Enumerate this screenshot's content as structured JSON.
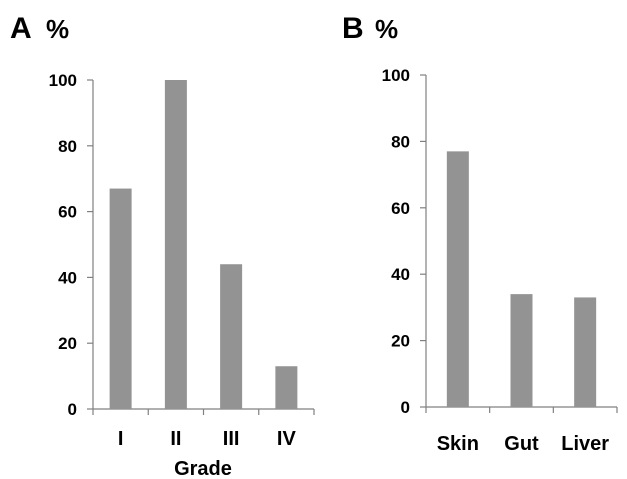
{
  "chart_data": [
    {
      "type": "bar",
      "panel": "A",
      "unit": "%",
      "categories": [
        "I",
        "II",
        "III",
        "IV"
      ],
      "values": [
        67,
        100,
        44,
        13
      ],
      "xlabel": "Grade",
      "ylabel": "",
      "ylim": [
        0,
        100
      ],
      "yticks": [
        0,
        20,
        40,
        60,
        80,
        100
      ],
      "grid": false,
      "bar_color": "#939393"
    },
    {
      "type": "bar",
      "panel": "B",
      "unit": "%",
      "categories": [
        "Skin",
        "Gut",
        "Liver"
      ],
      "values": [
        77,
        34,
        33
      ],
      "xlabel": "",
      "ylabel": "",
      "ylim": [
        0,
        100
      ],
      "yticks": [
        0,
        20,
        40,
        60,
        80,
        100
      ],
      "grid": false,
      "bar_color": "#939393"
    }
  ]
}
